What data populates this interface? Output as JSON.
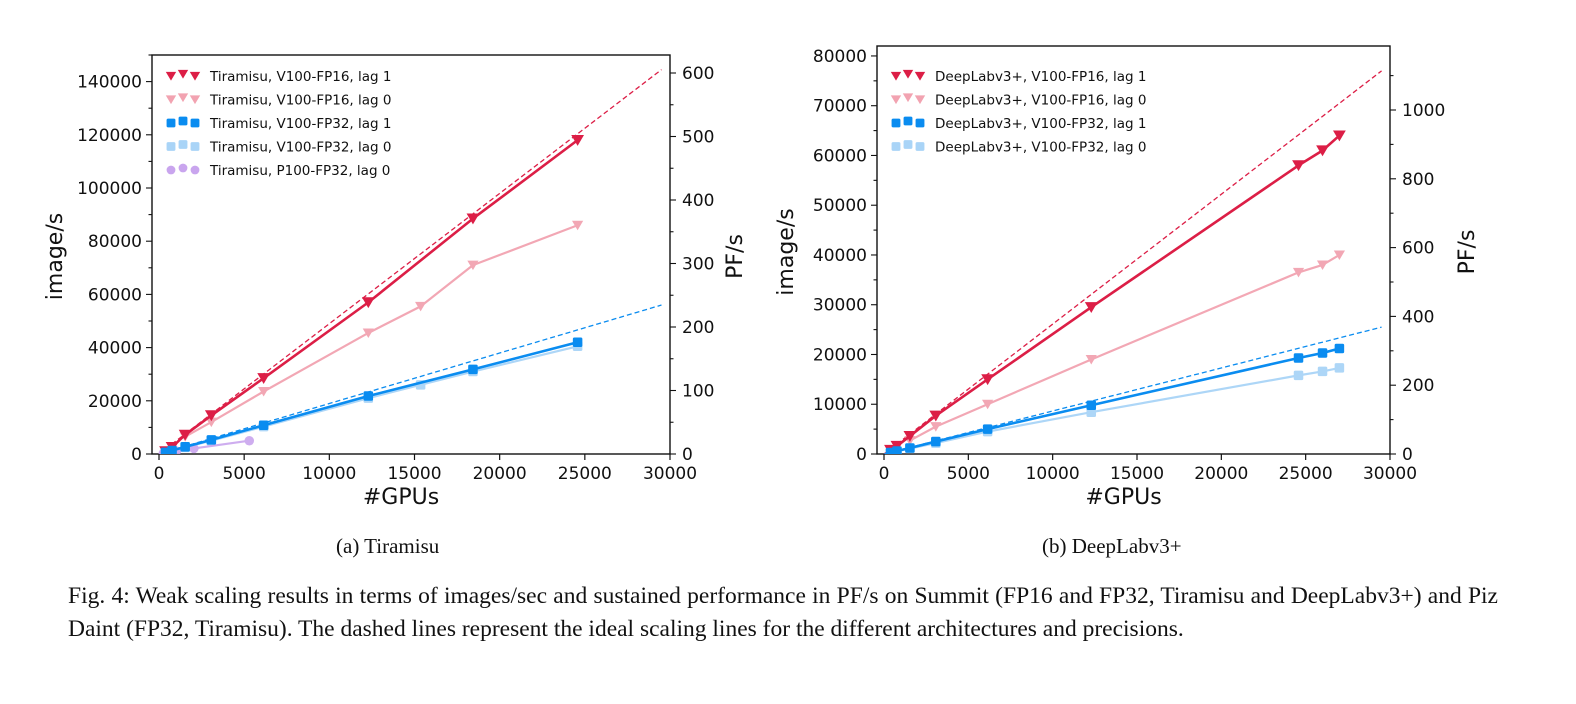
{
  "figure_caption": "Fig. 4: Weak scaling results in terms of images/sec and sustained performance in PF/s on Summit (FP16 and FP32, Tiramisu and DeepLabv3+) and Piz Daint (FP32, Tiramisu). The dashed lines represent the ideal scaling lines for the different architectures and precisions.",
  "colors": {
    "fp16_lag1": "#dc1e46",
    "fp16_lag0": "#f2a3b1",
    "fp32_lag1": "#0a8cf0",
    "fp32_lag0": "#a9d4f7",
    "p100_lag0": "#c9a5ee"
  },
  "chart_data": [
    {
      "type": "line",
      "subcaption": "(a) Tiramisu",
      "xlabel": "#GPUs",
      "ylabel": "image/s",
      "y2label": "PF/s",
      "xlim": [
        0,
        30000
      ],
      "ylim": [
        0,
        150000
      ],
      "y2lim": [
        0,
        630
      ],
      "xticks": [
        "0",
        "5000",
        "10000",
        "15000",
        "20000",
        "25000",
        "30000"
      ],
      "yticks": [
        "0",
        "20000",
        "40000",
        "60000",
        "80000",
        "100000",
        "120000",
        "140000"
      ],
      "y2ticks": [
        "0",
        "100",
        "200",
        "300",
        "400",
        "500",
        "600"
      ],
      "grid": false,
      "legend_position": "top-left",
      "series": [
        {
          "name": "Tiramisu, V100-FP16, lag 1",
          "style": "fp16_lag1",
          "marker": "triangle-down",
          "x": [
            384,
            768,
            1536,
            3072,
            6144,
            12288,
            18432,
            24576
          ],
          "y": [
            1000,
            2600,
            7200,
            14500,
            28500,
            57000,
            88500,
            118000
          ]
        },
        {
          "name": "Tiramisu, V100-FP16, lag 0",
          "style": "fp16_lag0",
          "marker": "triangle-down",
          "x": [
            1536,
            3072,
            6144,
            12288,
            15360,
            18432,
            24576
          ],
          "y": [
            6500,
            12000,
            23500,
            45500,
            55500,
            71000,
            86000
          ]
        },
        {
          "name": "Tiramisu, V100-FP32, lag 1",
          "style": "fp32_lag1",
          "marker": "square",
          "x": [
            384,
            768,
            1536,
            3072,
            6144,
            12288,
            18432,
            24576
          ],
          "y": [
            600,
            1300,
            2700,
            5300,
            10800,
            21800,
            31800,
            42000
          ]
        },
        {
          "name": "Tiramisu, V100-FP32, lag 0",
          "style": "fp32_lag0",
          "marker": "square",
          "x": [
            384,
            768,
            1536,
            3072,
            6144,
            12288,
            15360,
            18432,
            24576
          ],
          "y": [
            550,
            1200,
            2500,
            5000,
            10300,
            21000,
            26000,
            31000,
            40500
          ]
        },
        {
          "name": "Tiramisu, P100-FP32, lag 0",
          "style": "p100_lag0",
          "marker": "circle",
          "x": [
            256,
            512,
            1024,
            2048,
            5300
          ],
          "y": [
            300,
            600,
            1100,
            2100,
            5000
          ]
        }
      ],
      "ideal_lines": [
        {
          "name": "ideal FP16",
          "style": "fp16_lag1",
          "x": [
            0,
            29500
          ],
          "y": [
            0,
            144500
          ]
        },
        {
          "name": "ideal FP32",
          "style": "fp32_lag1",
          "x": [
            0,
            29500
          ],
          "y": [
            0,
            56000
          ]
        }
      ]
    },
    {
      "type": "line",
      "subcaption": "(b) DeepLabv3+",
      "xlabel": "#GPUs",
      "ylabel": "image/s",
      "y2label": "PF/s",
      "xlim": [
        0,
        30000
      ],
      "ylim": [
        0,
        82000
      ],
      "y2lim": [
        0,
        1180
      ],
      "xticks": [
        "0",
        "5000",
        "10000",
        "15000",
        "20000",
        "25000",
        "30000"
      ],
      "yticks": [
        "0",
        "10000",
        "20000",
        "30000",
        "40000",
        "50000",
        "60000",
        "70000",
        "80000"
      ],
      "y2ticks": [
        "0",
        "200",
        "400",
        "600",
        "800",
        "1000"
      ],
      "grid": false,
      "legend_position": "top-left",
      "series": [
        {
          "name": "DeepLabv3+, V100-FP16, lag 1",
          "style": "fp16_lag1",
          "marker": "triangle-down",
          "x": [
            384,
            768,
            1536,
            3072,
            6144,
            12288,
            24576,
            26000,
            27000
          ],
          "y": [
            800,
            1600,
            3600,
            7700,
            15000,
            29500,
            58000,
            61000,
            64000
          ]
        },
        {
          "name": "DeepLabv3+, V100-FP16, lag 0",
          "style": "fp16_lag0",
          "marker": "triangle-down",
          "x": [
            1536,
            3072,
            6144,
            12288,
            24576,
            26000,
            27000
          ],
          "y": [
            2700,
            5500,
            10000,
            19000,
            36500,
            38000,
            40000
          ]
        },
        {
          "name": "DeepLabv3+, V100-FP32, lag 1",
          "style": "fp32_lag1",
          "marker": "square",
          "x": [
            384,
            768,
            1536,
            3072,
            6144,
            12288,
            24576,
            26000,
            27000
          ],
          "y": [
            300,
            600,
            1200,
            2500,
            5000,
            9800,
            19300,
            20300,
            21200
          ]
        },
        {
          "name": "DeepLabv3+, V100-FP32, lag 0",
          "style": "fp32_lag0",
          "marker": "square",
          "x": [
            384,
            768,
            1536,
            3072,
            6144,
            12288,
            24576,
            26000,
            27000
          ],
          "y": [
            280,
            560,
            1100,
            2200,
            4500,
            8400,
            15800,
            16600,
            17300
          ]
        }
      ],
      "ideal_lines": [
        {
          "name": "ideal FP16",
          "style": "fp16_lag1",
          "x": [
            0,
            29500
          ],
          "y": [
            0,
            77000
          ]
        },
        {
          "name": "ideal FP32",
          "style": "fp32_lag1",
          "x": [
            0,
            29500
          ],
          "y": [
            0,
            25500
          ]
        }
      ]
    }
  ]
}
